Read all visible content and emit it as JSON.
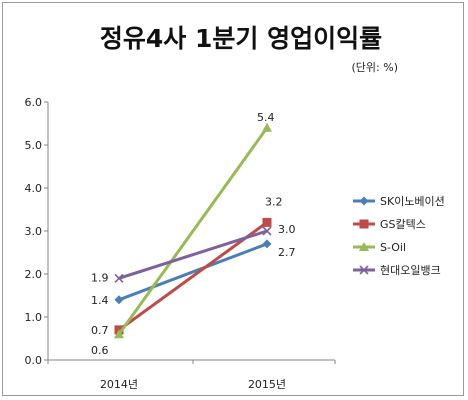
{
  "chart_data": {
    "type": "line",
    "title": "정유4사 1분기 영업이익률",
    "unit_note": "(단위: %)",
    "categories": [
      "2014년",
      "2015년"
    ],
    "ylim": [
      0,
      6
    ],
    "yticks": [
      "0.0",
      "1.0",
      "2.0",
      "3.0",
      "4.0",
      "5.0",
      "6.0"
    ],
    "grid": false,
    "legend_position": "right",
    "series": [
      {
        "name": "SK이노베이션",
        "color": "#4a7ebb",
        "marker": "diamond",
        "values": [
          1.4,
          2.7
        ],
        "labels": [
          "1.4",
          "2.7"
        ]
      },
      {
        "name": "GS칼텍스",
        "color": "#be4b48",
        "marker": "square",
        "values": [
          0.7,
          3.2
        ],
        "labels": [
          "0.7",
          "3.2"
        ]
      },
      {
        "name": "S-Oil",
        "color": "#98b954",
        "marker": "triangle",
        "values": [
          0.6,
          5.4
        ],
        "labels": [
          "0.6",
          "5.4"
        ]
      },
      {
        "name": "현대오일뱅크",
        "color": "#7d60a0",
        "marker": "x",
        "values": [
          1.9,
          3.0
        ],
        "labels": [
          "1.9",
          "3.0"
        ]
      }
    ]
  }
}
